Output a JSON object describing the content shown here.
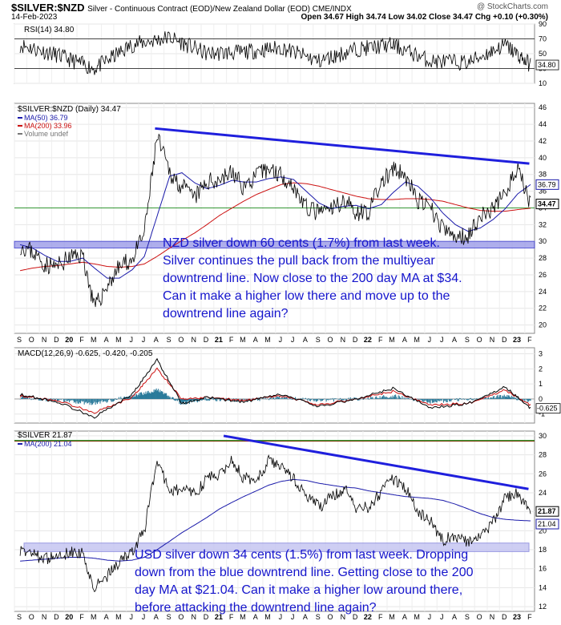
{
  "header": {
    "ticker": "$SILVER:$NZD",
    "description": "Silver - Continuous Contract (EOD)/New Zealand Dollar (EOD) CME/INDX",
    "brand": "@ StockCharts.com",
    "date": "14-Feb-2023",
    "ohlc": "Open 34.67  High 34.74  Low 34.02  Close 34.47  Chg +0.10 (+0.30%)"
  },
  "x_axis": {
    "labels": [
      "S",
      "O",
      "N",
      "D",
      "20",
      "F",
      "M",
      "A",
      "M",
      "J",
      "J",
      "A",
      "S",
      "O",
      "N",
      "D",
      "21",
      "F",
      "M",
      "A",
      "M",
      "J",
      "J",
      "A",
      "S",
      "O",
      "N",
      "D",
      "22",
      "F",
      "M",
      "A",
      "M",
      "J",
      "J",
      "A",
      "S",
      "O",
      "N",
      "D",
      "23",
      "F"
    ]
  },
  "panels": {
    "rsi": {
      "label": "RSI(14) 34.80",
      "ticks": [
        "90",
        "70",
        "50",
        "30",
        "10"
      ],
      "last": "34.80"
    },
    "nzd": {
      "label": "$SILVER:$NZD (Daily) 34.47",
      "legend": [
        {
          "text": "MA(50) 36.79",
          "color": "#1a1aaa"
        },
        {
          "text": "MA(200) 33.96",
          "color": "#cc1111"
        },
        {
          "text": "Volume undef",
          "color": "#777777"
        }
      ],
      "ticks": [
        "46",
        "44",
        "42",
        "40",
        "38",
        "36",
        "34",
        "32",
        "30",
        "28",
        "26",
        "24",
        "22",
        "20"
      ],
      "tags": [
        "36.79",
        "34.47"
      ],
      "annotation": [
        "NZD silver down 60 cents (1.7%) from last week.",
        "Silver continues the pull back from the multiyear",
        "downtrend line. Now close to the 200 day MA at $34.",
        "Can it make a higher low there and move up to the",
        "downtrend line again?"
      ]
    },
    "macd": {
      "label": "MACD(12,26,9) -0.625, -0.420, -0.205",
      "ticks": [
        "3",
        "2",
        "1",
        "0",
        "-1"
      ],
      "tags": [
        "-0.625"
      ]
    },
    "usd": {
      "label": "$SILVER 21.87",
      "legend": [
        {
          "text": "MA(200) 21.04",
          "color": "#1a1aaa"
        }
      ],
      "ticks": [
        "30",
        "28",
        "26",
        "24",
        "22",
        "20",
        "18",
        "16",
        "14",
        "12"
      ],
      "tags": [
        "21.87",
        "21.04"
      ],
      "annotation": [
        "USD silver down 34 cents (1.5%) from last week. Dropping",
        "down from the blue downtrend line. Getting close to the 200",
        "day MA at $21.04. Can it make a higher low around there,",
        "before attacking the downtrend line again?"
      ]
    }
  },
  "colors": {
    "price": "#000000",
    "ma50": "#1a1aaa",
    "ma200": "#cc1111",
    "trend": "#1f1fdd",
    "support": "#9a9ae8",
    "annot": "#1515cc",
    "green": "#1a8a1a"
  },
  "chart_data": [
    {
      "type": "line",
      "title": "$SILVER:$NZD (Daily) 34.47",
      "ylim": [
        19,
        46.5
      ],
      "x": [
        "2019-09",
        "2019-10",
        "2019-11",
        "2019-12",
        "2020-01",
        "2020-02",
        "2020-03",
        "2020-04",
        "2020-05",
        "2020-06",
        "2020-07",
        "2020-08",
        "2020-09",
        "2020-10",
        "2020-11",
        "2020-12",
        "2021-01",
        "2021-02",
        "2021-03",
        "2021-04",
        "2021-05",
        "2021-06",
        "2021-07",
        "2021-08",
        "2021-09",
        "2021-10",
        "2021-11",
        "2021-12",
        "2022-01",
        "2022-02",
        "2022-03",
        "2022-04",
        "2022-05",
        "2022-06",
        "2022-07",
        "2022-08",
        "2022-09",
        "2022-10",
        "2022-11",
        "2022-12",
        "2023-01",
        "2023-02"
      ],
      "series": [
        {
          "name": "$SILVER:$NZD",
          "values": [
            29.5,
            28.8,
            27.2,
            27.0,
            28.1,
            28.4,
            22.0,
            24.7,
            27.0,
            27.8,
            31.0,
            42.5,
            38.2,
            36.5,
            35.2,
            37.0,
            37.5,
            38.2,
            36.5,
            37.8,
            38.7,
            38.0,
            36.6,
            34.0,
            33.4,
            33.8,
            35.0,
            33.5,
            33.6,
            37.0,
            38.5,
            37.8,
            34.8,
            33.9,
            31.5,
            30.4,
            30.8,
            33.0,
            33.8,
            36.0,
            38.5,
            34.47
          ]
        },
        {
          "name": "MA(50) 36.79",
          "values": [
            29.6,
            29.2,
            28.3,
            27.6,
            27.6,
            28.0,
            26.8,
            25.6,
            25.6,
            26.6,
            28.2,
            33.0,
            37.8,
            38.2,
            37.0,
            36.3,
            36.7,
            37.3,
            37.1,
            37.1,
            37.5,
            37.7,
            37.4,
            36.0,
            34.6,
            33.9,
            34.2,
            34.3,
            33.9,
            34.4,
            35.8,
            37.1,
            36.6,
            35.2,
            33.4,
            32.0,
            31.2,
            31.6,
            32.6,
            33.9,
            35.7,
            36.79
          ]
        },
        {
          "name": "MA(200) 33.96",
          "values": [
            26.5,
            26.8,
            27.0,
            27.1,
            27.3,
            27.5,
            27.3,
            27.0,
            26.9,
            27.0,
            27.3,
            28.2,
            29.2,
            30.1,
            31.0,
            32.0,
            33.1,
            34.0,
            34.8,
            35.6,
            36.2,
            36.8,
            37.0,
            36.9,
            36.6,
            36.2,
            35.8,
            35.4,
            35.1,
            35.0,
            35.0,
            35.1,
            35.1,
            35.0,
            34.8,
            34.4,
            34.0,
            33.7,
            33.6,
            33.6,
            33.8,
            33.96
          ]
        }
      ],
      "annotations": [
        "downtrend line from ~43.5 (Aug 2020) to ~39.3 (Feb 2023)",
        "support band 29.3-30.0",
        "horizontal line at 34"
      ]
    },
    {
      "type": "line",
      "title": "RSI(14) 34.80",
      "ylim": [
        10,
        90
      ],
      "x": [
        "2019-09",
        "2019-12",
        "2020-03",
        "2020-06",
        "2020-09",
        "2020-12",
        "2021-03",
        "2021-06",
        "2021-09",
        "2021-12",
        "2022-03",
        "2022-06",
        "2022-09",
        "2022-12",
        "2023-02"
      ],
      "series": [
        {
          "name": "RSI(14)",
          "values": [
            62,
            48,
            30,
            62,
            72,
            50,
            52,
            58,
            40,
            56,
            62,
            40,
            38,
            62,
            34.8
          ]
        }
      ]
    },
    {
      "type": "line",
      "title": "MACD(12,26,9) -0.625, -0.420, -0.205",
      "ylim": [
        -1.6,
        3.4
      ],
      "x": [
        "2019-09",
        "2019-12",
        "2020-03",
        "2020-06",
        "2020-08",
        "2020-10",
        "2020-12",
        "2021-03",
        "2021-06",
        "2021-09",
        "2021-12",
        "2022-03",
        "2022-06",
        "2022-09",
        "2022-12",
        "2023-02"
      ],
      "series": [
        {
          "name": "MACD",
          "values": [
            0.3,
            -0.2,
            -1.2,
            0.3,
            2.6,
            -0.3,
            0.1,
            -0.2,
            0.3,
            -0.5,
            0.0,
            0.7,
            -0.6,
            -0.3,
            0.8,
            -0.625
          ]
        },
        {
          "name": "Signal",
          "values": [
            0.2,
            -0.1,
            -0.9,
            0.1,
            2.0,
            0.0,
            0.1,
            -0.1,
            0.2,
            -0.4,
            0.0,
            0.5,
            -0.4,
            -0.3,
            0.6,
            -0.42
          ]
        },
        {
          "name": "Histogram",
          "values": [
            0.1,
            -0.1,
            -0.3,
            0.2,
            0.6,
            -0.3,
            0.0,
            -0.1,
            0.1,
            -0.1,
            0.0,
            0.2,
            -0.2,
            0.0,
            0.2,
            -0.205
          ]
        }
      ]
    },
    {
      "type": "line",
      "title": "$SILVER 21.87",
      "ylim": [
        11.5,
        30.5
      ],
      "x": [
        "2019-09",
        "2019-10",
        "2019-11",
        "2019-12",
        "2020-01",
        "2020-02",
        "2020-03",
        "2020-04",
        "2020-05",
        "2020-06",
        "2020-07",
        "2020-08",
        "2020-09",
        "2020-10",
        "2020-11",
        "2020-12",
        "2021-01",
        "2021-02",
        "2021-03",
        "2021-04",
        "2021-05",
        "2021-06",
        "2021-07",
        "2021-08",
        "2021-09",
        "2021-10",
        "2021-11",
        "2021-12",
        "2022-01",
        "2022-02",
        "2022-03",
        "2022-04",
        "2022-05",
        "2022-06",
        "2022-07",
        "2022-08",
        "2022-09",
        "2022-10",
        "2022-11",
        "2022-12",
        "2023-01",
        "2023-02"
      ],
      "series": [
        {
          "name": "$SILVER",
          "values": [
            18.0,
            17.5,
            17.0,
            17.2,
            17.8,
            17.6,
            14.0,
            15.2,
            16.8,
            17.8,
            20.0,
            27.5,
            24.0,
            24.5,
            23.8,
            25.5,
            26.0,
            27.5,
            25.5,
            25.5,
            27.3,
            26.8,
            25.5,
            23.8,
            22.5,
            23.5,
            24.5,
            22.5,
            22.5,
            24.0,
            25.5,
            24.5,
            22.0,
            21.0,
            19.0,
            19.5,
            18.8,
            19.5,
            20.8,
            23.5,
            24.0,
            21.87
          ]
        },
        {
          "name": "MA(200) 21.04",
          "values": [
            16.8,
            16.9,
            17.0,
            17.1,
            17.2,
            17.2,
            17.1,
            16.9,
            16.8,
            16.9,
            17.2,
            18.0,
            18.9,
            19.8,
            20.6,
            21.4,
            22.3,
            23.0,
            23.6,
            24.2,
            24.8,
            25.2,
            25.4,
            25.3,
            25.0,
            24.8,
            24.6,
            24.5,
            24.2,
            24.0,
            23.8,
            23.6,
            23.5,
            23.4,
            23.2,
            22.8,
            22.3,
            21.8,
            21.4,
            21.2,
            21.1,
            21.04
          ]
        }
      ],
      "annotations": [
        "downtrend line from ~30.0 (Jan 2021) to ~24.4 (Feb 2023)",
        "horizontal line at 29.5",
        "support band 17.8-18.7"
      ]
    }
  ]
}
